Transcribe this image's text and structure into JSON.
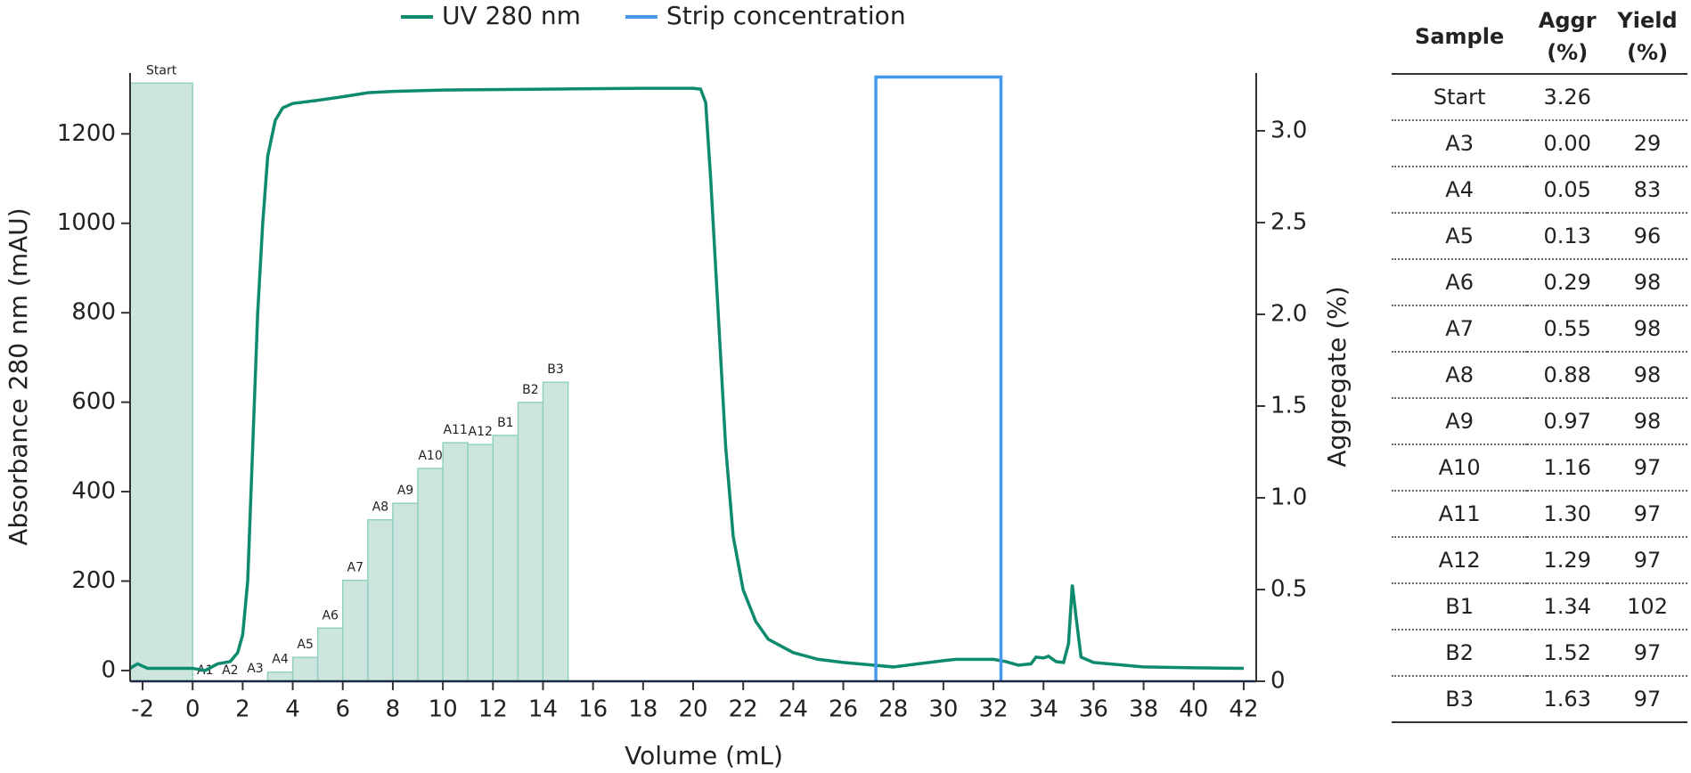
{
  "chart_data": {
    "type": "combo",
    "xlabel": "Volume (mL)",
    "ylabel": "Absorbance 280 nm (mAU)",
    "y2label": "Aggregate (%)",
    "xlim": [
      -2.5,
      42.5
    ],
    "ylim": [
      -24,
      1336
    ],
    "y2lim": [
      0,
      3.315
    ],
    "xticks": [
      -2,
      0,
      2,
      4,
      6,
      8,
      10,
      12,
      14,
      16,
      18,
      20,
      22,
      24,
      26,
      28,
      30,
      32,
      34,
      36,
      38,
      40,
      42
    ],
    "yticks": [
      0,
      200,
      400,
      600,
      800,
      1000,
      1200
    ],
    "y2ticks": [
      0,
      0.5,
      {
        "value": 1.0,
        "label": "1.0"
      },
      1.5,
      {
        "value": 2.0,
        "label": "2.0"
      },
      2.5,
      {
        "value": 3.0,
        "label": "3.0"
      }
    ],
    "legend": "top",
    "series": [
      {
        "name": "UV 280 nm",
        "color": "#0e8a6e",
        "axis": "y",
        "x": [
          -2.5,
          -2.2,
          -1.8,
          -1,
          0,
          0.5,
          1,
          1.5,
          1.8,
          2.0,
          2.2,
          2.4,
          2.6,
          2.8,
          3.0,
          3.3,
          3.6,
          4,
          5,
          6,
          7,
          8,
          10,
          14,
          18,
          20,
          20.3,
          20.5,
          20.7,
          21,
          21.3,
          21.6,
          22,
          22.5,
          23,
          24,
          25,
          26,
          27,
          28,
          29,
          30,
          30.5,
          32,
          32.5,
          33,
          33.5,
          33.7,
          34,
          34.2,
          34.5,
          34.8,
          35,
          35.15,
          35.3,
          35.5,
          36,
          38,
          40,
          42
        ],
        "values": [
          5,
          15,
          5,
          5,
          5,
          0,
          15,
          20,
          40,
          80,
          200,
          500,
          800,
          1000,
          1150,
          1230,
          1258,
          1268,
          1275,
          1283,
          1292,
          1295,
          1298,
          1300,
          1302,
          1302,
          1300,
          1270,
          1100,
          800,
          500,
          300,
          180,
          110,
          70,
          40,
          25,
          18,
          13,
          8,
          15,
          22,
          25,
          25,
          20,
          12,
          15,
          30,
          28,
          32,
          20,
          18,
          60,
          192,
          120,
          30,
          18,
          8,
          6,
          5
        ]
      },
      {
        "name": "Strip concentration",
        "color": "#4499ee",
        "axis": "y",
        "x": [
          27.3,
          27.3,
          32.3,
          32.3
        ],
        "values": [
          -24,
          1327,
          1327,
          -24
        ]
      }
    ],
    "bars": {
      "axis": "y2",
      "color": "#cce6df",
      "edge_color": "#93d0bf",
      "categories": [
        "Start",
        "A1",
        "A2",
        "A3",
        "A4",
        "A5",
        "A6",
        "A7",
        "A8",
        "A9",
        "A10",
        "A11",
        "A12",
        "B1",
        "B2",
        "B3"
      ],
      "edges": [
        -2.5,
        0,
        1,
        2,
        3,
        4,
        5,
        6,
        7,
        8,
        9,
        10,
        11,
        12,
        13,
        14,
        15
      ],
      "values": [
        3.26,
        null,
        null,
        0.0,
        0.05,
        0.13,
        0.29,
        0.55,
        0.88,
        0.97,
        1.16,
        1.3,
        1.29,
        1.34,
        1.52,
        1.63
      ]
    }
  },
  "table": {
    "header": [
      "Sample",
      "Aggr (%)",
      "Yield (%)"
    ],
    "rows": [
      [
        "Start",
        "3.26"
      ],
      [
        "A3",
        "0.00",
        "29"
      ],
      [
        "A4",
        "0.05",
        "83"
      ],
      [
        "A5",
        "0.13",
        "96"
      ],
      [
        "A6",
        "0.29",
        "98"
      ],
      [
        "A7",
        "0.55",
        "98"
      ],
      [
        "A8",
        "0.88",
        "98"
      ],
      [
        "A9",
        "0.97",
        "98"
      ],
      [
        "A10",
        "1.16",
        "97"
      ],
      [
        "A11",
        "1.30",
        "97"
      ],
      [
        "A12",
        "1.29",
        "97"
      ],
      [
        "B1",
        "1.34",
        "102"
      ],
      [
        "B2",
        "1.52",
        "97"
      ],
      [
        "B3",
        "1.63",
        "97"
      ]
    ]
  }
}
